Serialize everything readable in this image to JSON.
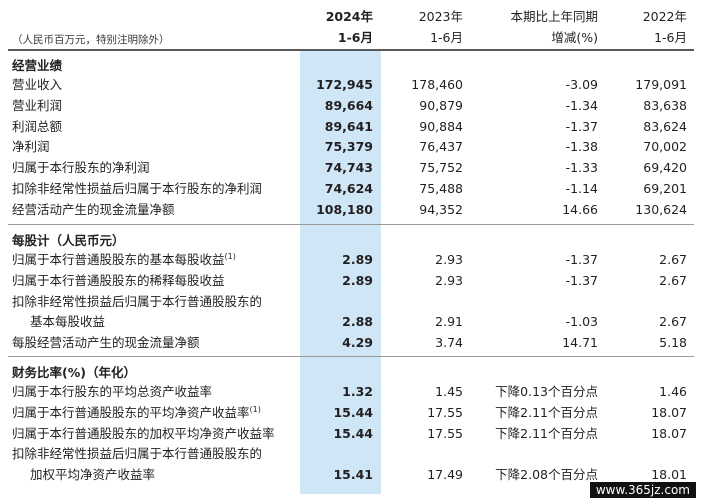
{
  "header": {
    "unit_note": "（人民币百万元，特别注明除外）",
    "col1_line1": "2024年",
    "col1_line2": "1-6月",
    "col2_line1": "2023年",
    "col2_line2": "1-6月",
    "col3_line1": "本期比上年同期",
    "col3_line2": "增减(%)",
    "col4_line1": "2022年",
    "col4_line2": "1-6月"
  },
  "sections": [
    {
      "title": "经营业绩",
      "rows": [
        {
          "label": "营业收入",
          "v2024": "172,945",
          "v2023": "178,460",
          "chg": "-3.09",
          "v2022": "179,091"
        },
        {
          "label": "营业利润",
          "v2024": "89,664",
          "v2023": "90,879",
          "chg": "-1.34",
          "v2022": "83,638"
        },
        {
          "label": "利润总额",
          "v2024": "89,641",
          "v2023": "90,884",
          "chg": "-1.37",
          "v2022": "83,624"
        },
        {
          "label": "净利润",
          "v2024": "75,379",
          "v2023": "76,437",
          "chg": "-1.38",
          "v2022": "70,002"
        },
        {
          "label": "归属于本行股东的净利润",
          "v2024": "74,743",
          "v2023": "75,752",
          "chg": "-1.33",
          "v2022": "69,420"
        },
        {
          "label": "扣除非经常性损益后归属于本行股东的净利润",
          "v2024": "74,624",
          "v2023": "75,488",
          "chg": "-1.14",
          "v2022": "69,201"
        },
        {
          "label": "经营活动产生的现金流量净额",
          "v2024": "108,180",
          "v2023": "94,352",
          "chg": "14.66",
          "v2022": "130,624"
        }
      ]
    },
    {
      "title": "每股计（人民币元）",
      "rows": [
        {
          "label": "归属于本行普通股股东的基本每股收益",
          "footnote": "(1)",
          "v2024": "2.89",
          "v2023": "2.93",
          "chg": "-1.37",
          "v2022": "2.67"
        },
        {
          "label": "归属于本行普通股股东的稀释每股收益",
          "v2024": "2.89",
          "v2023": "2.93",
          "chg": "-1.37",
          "v2022": "2.67"
        },
        {
          "label": "扣除非经常性损益后归属于本行普通股股东的",
          "v2024": "",
          "v2023": "",
          "chg": "",
          "v2022": ""
        },
        {
          "label": "基本每股收益",
          "indent": true,
          "v2024": "2.88",
          "v2023": "2.91",
          "chg": "-1.03",
          "v2022": "2.67"
        },
        {
          "label": "每股经营活动产生的现金流量净额",
          "v2024": "4.29",
          "v2023": "3.74",
          "chg": "14.71",
          "v2022": "5.18"
        }
      ]
    },
    {
      "title": "财务比率(%)（年化）",
      "rows": [
        {
          "label": "归属于本行股东的平均总资产收益率",
          "v2024": "1.32",
          "v2023": "1.45",
          "chg": "下降0.13个百分点",
          "v2022": "1.46"
        },
        {
          "label": "归属于本行普通股股东的平均净资产收益率",
          "footnote": "(1)",
          "v2024": "15.44",
          "v2023": "17.55",
          "chg": "下降2.11个百分点",
          "v2022": "18.07"
        },
        {
          "label": "归属于本行普通股股东的加权平均净资产收益率",
          "v2024": "15.44",
          "v2023": "17.55",
          "chg": "下降2.11个百分点",
          "v2022": "18.07"
        },
        {
          "label": "扣除非经常性损益后归属于本行普通股股东的",
          "v2024": "",
          "v2023": "",
          "chg": "",
          "v2022": ""
        },
        {
          "label": "加权平均净资产收益率",
          "indent": true,
          "v2024": "15.41",
          "v2023": "17.49",
          "chg": "下降2.08个百分点",
          "v2022": "18.01"
        }
      ]
    }
  ],
  "watermark": "www.365jz.com"
}
